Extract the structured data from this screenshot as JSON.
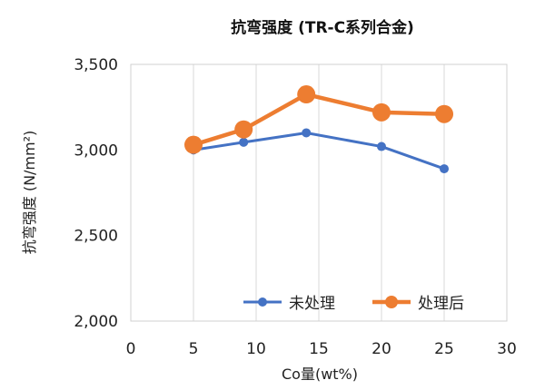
{
  "chart_data": {
    "type": "line",
    "title": "抗弯强度 (TR-C系列合金)",
    "xlabel": "Co量(wt%)",
    "ylabel": "抗弯强度 (N/mm²)",
    "xlim": [
      0,
      30
    ],
    "ylim": [
      2000,
      3500
    ],
    "x_ticks": [
      "0",
      "5",
      "10",
      "15",
      "20",
      "25",
      "30"
    ],
    "y_ticks": [
      "2,000",
      "2,500",
      "3,000",
      "3,500"
    ],
    "grid": "vertical",
    "legend_position": "bottom-right",
    "series": [
      {
        "name": "未处理",
        "color": "#4472C4",
        "x": [
          5,
          9,
          14,
          20,
          25
        ],
        "y": [
          3000,
          3045,
          3100,
          3020,
          2890
        ]
      },
      {
        "name": "处理后",
        "color": "#ED7D31",
        "x": [
          5,
          9,
          14,
          20,
          25
        ],
        "y": [
          3030,
          3120,
          3325,
          3220,
          3210
        ]
      }
    ]
  }
}
